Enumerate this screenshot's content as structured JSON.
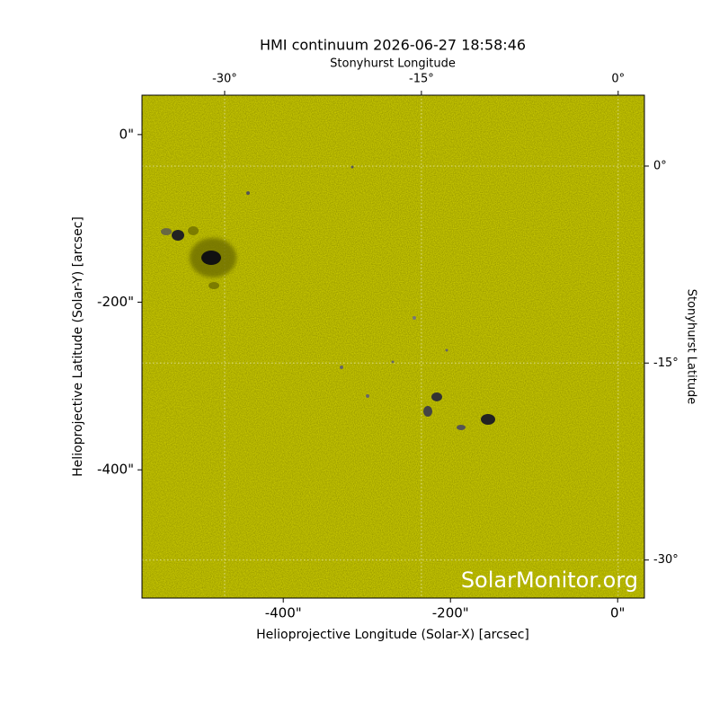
{
  "chart_data": {
    "type": "image",
    "title": "HMI continuum 2026-06-27 18:58:46",
    "xlabel": "Helioprojective Longitude (Solar-X) [arcsec]",
    "ylabel": "Helioprojective Latitude (Solar-Y) [arcsec]",
    "x2label": "Stonyhurst Longitude",
    "y2label": "Stonyhurst Latitude",
    "xlim": [
      -569,
      32
    ],
    "xticks": [
      {
        "value": -400,
        "label": "-400\""
      },
      {
        "value": -200,
        "label": "-200\""
      },
      {
        "value": 0,
        "label": "0\""
      }
    ],
    "ylim": [
      -553,
      47
    ],
    "yticks": [
      {
        "value": 0,
        "label": "0\""
      },
      {
        "value": -200,
        "label": "-200\""
      },
      {
        "value": -400,
        "label": "-400\""
      }
    ],
    "x2lim": [
      -36.3,
      2
    ],
    "x2ticks": [
      {
        "value": -30,
        "label": "-30°"
      },
      {
        "value": -15,
        "label": "-15°"
      },
      {
        "value": 0,
        "label": "0°"
      }
    ],
    "y2lim": [
      -32.9,
      5.4
    ],
    "y2ticks": [
      {
        "value": 0,
        "label": "0°"
      },
      {
        "value": -15,
        "label": "-15°"
      },
      {
        "value": -30,
        "label": "-30°"
      }
    ],
    "watermark": "SolarMonitor.org",
    "color": "#cccc00",
    "grid": true
  }
}
